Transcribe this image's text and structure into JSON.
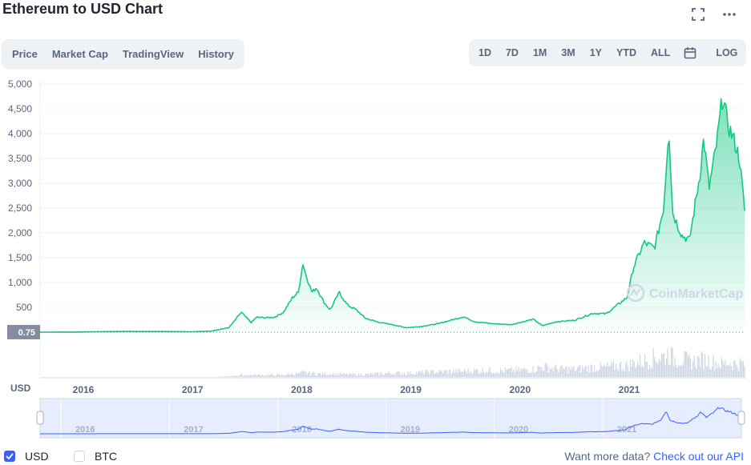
{
  "header": {
    "title": "Ethereum to USD Chart"
  },
  "tabs": [
    {
      "label": "Price",
      "active": true
    },
    {
      "label": "Market Cap",
      "active": false
    },
    {
      "label": "TradingView",
      "active": false
    },
    {
      "label": "History",
      "active": false
    }
  ],
  "ranges": [
    {
      "label": "1D",
      "active": false
    },
    {
      "label": "7D",
      "active": false
    },
    {
      "label": "1M",
      "active": false
    },
    {
      "label": "3M",
      "active": false
    },
    {
      "label": "1Y",
      "active": false
    },
    {
      "label": "YTD",
      "active": false
    },
    {
      "label": "ALL",
      "active": true
    }
  ],
  "log_label": "LOG",
  "icons": {
    "fullscreen": "fullscreen-icon",
    "more": "more-icon",
    "calendar": "calendar-icon"
  },
  "colors": {
    "line": "#16c784",
    "volume": "#cfd6e4",
    "accent": "#3861fb",
    "navigator_bg": "#e6edff"
  },
  "watermark": "CoinMarketCap",
  "legend": [
    {
      "label": "USD",
      "checked": true
    },
    {
      "label": "BTC",
      "checked": false
    }
  ],
  "footer": {
    "text": "Want more data?",
    "link": "Check out our API"
  },
  "chart_data": {
    "type": "area",
    "title": "",
    "xlabel": "",
    "ylabel": "",
    "currency_label": "USD",
    "x_ticks": [
      "2016",
      "2017",
      "2018",
      "2019",
      "2020",
      "2021"
    ],
    "y_ticks": [
      "5,000",
      "4,500",
      "4,000",
      "3,500",
      "3,000",
      "2,500",
      "2,000",
      "1,500",
      "1,000",
      "500"
    ],
    "ylim": [
      0,
      5000
    ],
    "grid": true,
    "start_value_label": "0.75",
    "x": [
      "2015-08",
      "2015-12",
      "2016-03",
      "2016-06",
      "2016-10",
      "2017-01",
      "2017-03",
      "2017-05",
      "2017-06-12",
      "2017-07-15",
      "2017-08",
      "2017-09",
      "2017-10",
      "2017-11",
      "2017-12",
      "2017-12-20",
      "2018-01-05",
      "2018-01-13",
      "2018-02-05",
      "2018-02-20",
      "2018-03-15",
      "2018-04-05",
      "2018-05-05",
      "2018-06-01",
      "2018-07-01",
      "2018-08-01",
      "2018-09-15",
      "2018-11-01",
      "2018-12-15",
      "2019-02-01",
      "2019-04-01",
      "2019-06-25",
      "2019-08-01",
      "2019-10-01",
      "2019-12-01",
      "2020-02-15",
      "2020-03-15",
      "2020-05-01",
      "2020-07-01",
      "2020-09-01",
      "2020-10-15",
      "2020-11-25",
      "2020-12-25",
      "2021-01-15",
      "2021-02-20",
      "2021-03-25",
      "2021-04-25",
      "2021-05-12",
      "2021-05-25",
      "2021-06-25",
      "2021-07-20",
      "2021-08-25",
      "2021-09-07",
      "2021-09-25",
      "2021-10-20",
      "2021-11-10",
      "2021-11-25",
      "2021-12-15",
      "2022-01-05",
      "2022-01-22"
    ],
    "values": [
      0.75,
      0.9,
      10,
      14,
      12,
      8,
      20,
      90,
      400,
      190,
      300,
      290,
      300,
      400,
      700,
      800,
      1390,
      1200,
      800,
      900,
      600,
      450,
      800,
      550,
      450,
      280,
      200,
      150,
      90,
      110,
      170,
      310,
      210,
      170,
      150,
      260,
      130,
      210,
      240,
      380,
      370,
      560,
      700,
      1300,
      1800,
      1700,
      2500,
      4150,
      2400,
      1950,
      1850,
      3200,
      3900,
      2900,
      3800,
      4800,
      4200,
      3900,
      3500,
      2450
    ],
    "volume": [
      0,
      0,
      0,
      0,
      0,
      0,
      0,
      1,
      3,
      3,
      3,
      3,
      3,
      3,
      5,
      5,
      7,
      6,
      6,
      5,
      5,
      5,
      5,
      4,
      4,
      4,
      5,
      6,
      6,
      7,
      8,
      9,
      10,
      10,
      10,
      12,
      16,
      13,
      12,
      15,
      15,
      18,
      18,
      22,
      25,
      30,
      32,
      38,
      28,
      28,
      24,
      26,
      27,
      25,
      22,
      20,
      23,
      21,
      22,
      20
    ]
  }
}
